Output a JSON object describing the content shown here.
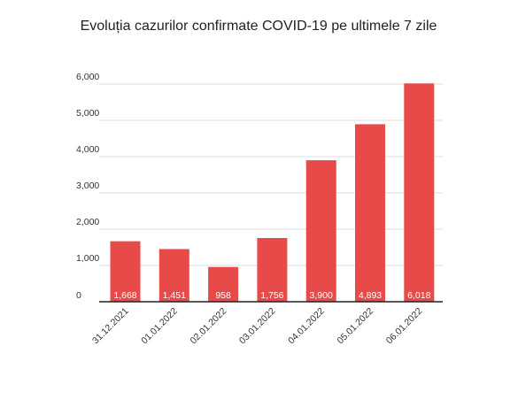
{
  "chart_data": {
    "type": "bar",
    "title": "Evoluția cazurilor confirmate COVID-19 pe ultimele 7 zile",
    "xlabel": "",
    "ylabel": "",
    "categories": [
      "31.12.2021",
      "01.01.2022",
      "02.01.2022",
      "03.01.2022",
      "04.01.2022",
      "05.01.2022",
      "06.01.2022"
    ],
    "values": [
      1668,
      1451,
      958,
      1756,
      3900,
      4893,
      6018
    ],
    "data_labels": [
      "1,668",
      "1,451",
      "958",
      "1,756",
      "3,900",
      "4,893",
      "6,018"
    ],
    "y_ticks": [
      0,
      1000,
      2000,
      3000,
      4000,
      5000,
      6000
    ],
    "y_tick_labels": [
      "0",
      "1,000",
      "2,000",
      "3,000",
      "4,000",
      "5,000",
      "6,000"
    ],
    "ylim": [
      0,
      6000
    ],
    "grid": true,
    "legend": "none",
    "colors": {
      "bar": "#e84a4a",
      "grid": "#dddddd",
      "axis": "#222222",
      "text": "#333333"
    }
  }
}
